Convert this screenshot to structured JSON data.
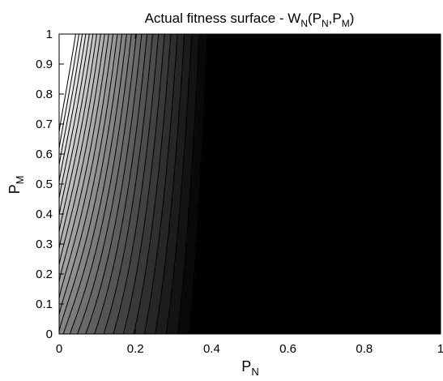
{
  "chart_data": {
    "type": "contour",
    "title": {
      "main": "Actual fitness surface - W",
      "sub": "N",
      "paren_open": "(P",
      "arg1_sub": "N",
      "comma": ",P",
      "arg2_sub": "M",
      "paren_close": ")"
    },
    "xlabel": {
      "main": "P",
      "sub": "N"
    },
    "ylabel": {
      "main": "P",
      "sub": "M"
    },
    "xlim": [
      0,
      1
    ],
    "ylim": [
      0,
      1
    ],
    "xticks": [
      "0",
      "0.2",
      "0.4",
      "0.6",
      "0.8",
      "1"
    ],
    "yticks": [
      "0",
      "0.1",
      "0.2",
      "0.3",
      "0.4",
      "0.5",
      "0.6",
      "0.7",
      "0.8",
      "0.9",
      "1"
    ],
    "colormap": "gray",
    "level_count": 32,
    "level_spacing": 0.0305,
    "high_color": "#ffffff",
    "low_color": "#000000",
    "line_color": "#000000"
  }
}
